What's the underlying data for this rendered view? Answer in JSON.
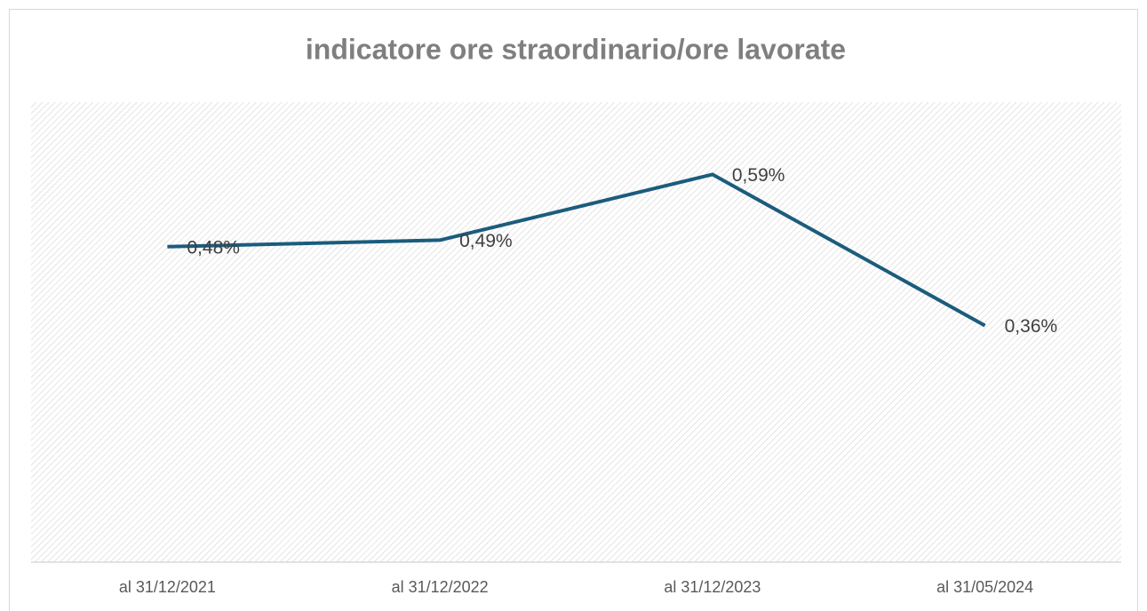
{
  "chart_data": {
    "type": "line",
    "title": "indicatore ore straordinario/ore lavorate",
    "categories": [
      "al 31/12/2021",
      "al 31/12/2022",
      "al 31/12/2023",
      "al 31/05/2024"
    ],
    "series": [
      {
        "color": "#1b5c7d",
        "values": [
          0.48,
          0.49,
          0.59,
          0.36
        ],
        "value_labels": [
          "0,48%",
          "0,49%",
          "0,59%",
          "0,36%"
        ]
      }
    ],
    "ylim": [
      0,
      0.7
    ]
  }
}
